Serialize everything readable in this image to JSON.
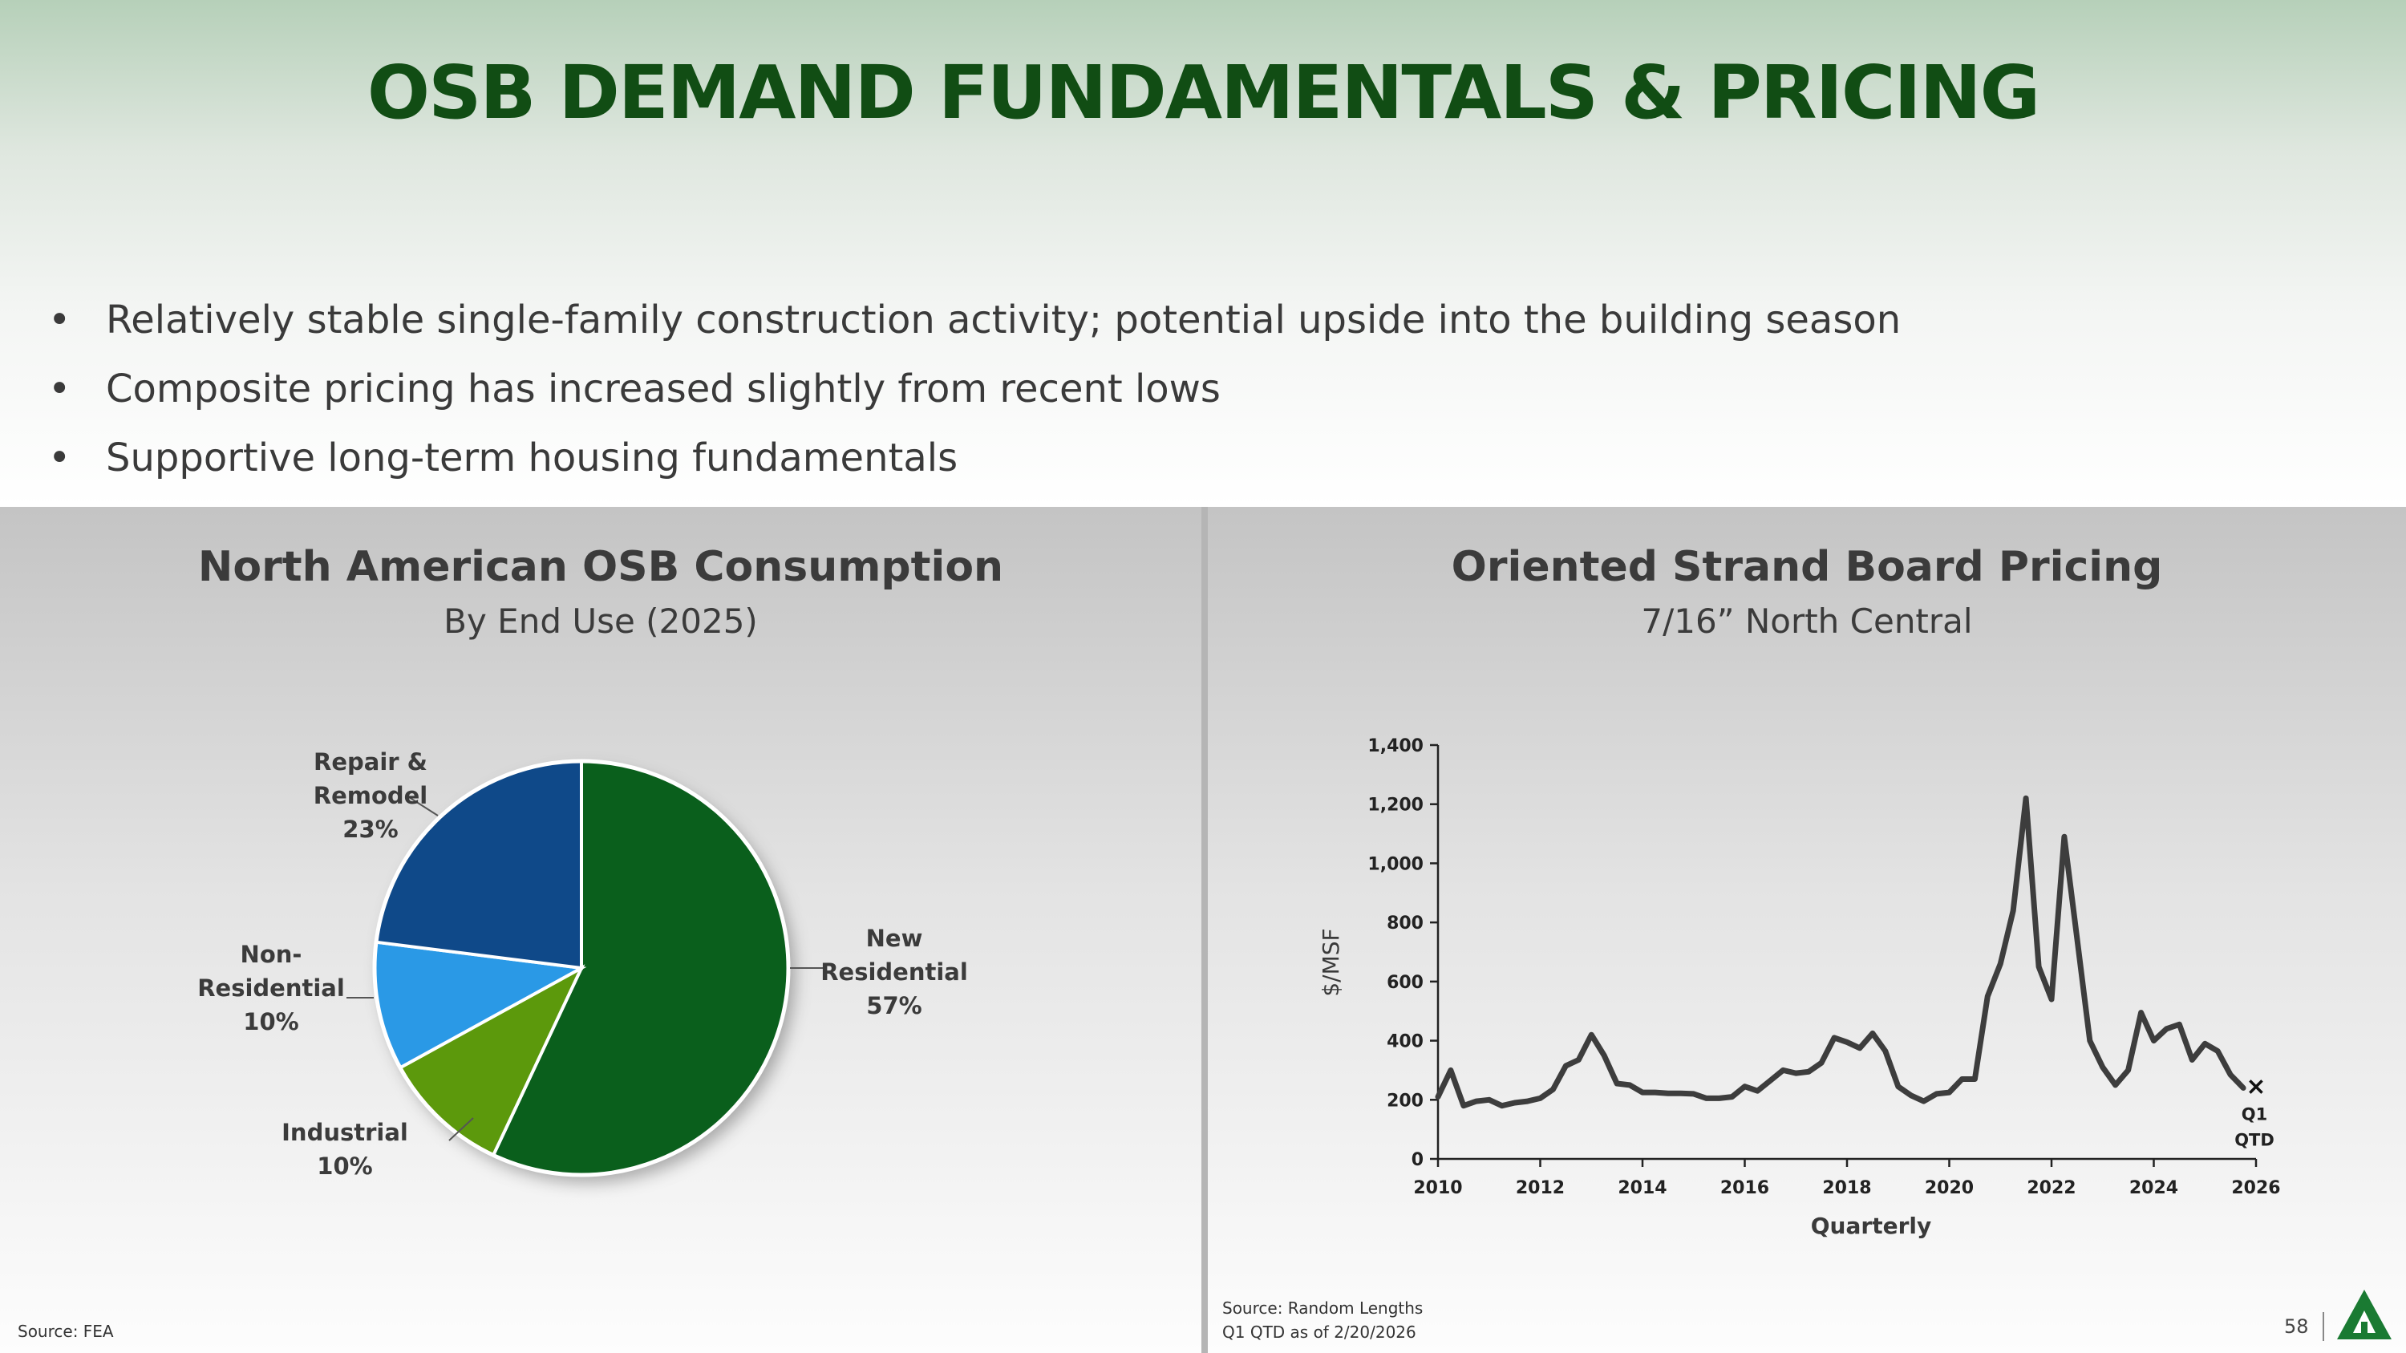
{
  "title": "OSB DEMAND FUNDAMENTALS & PRICING",
  "bullets": [
    "Relatively stable single-family construction activity; potential upside into the building season",
    "Composite pricing has increased slightly from recent lows",
    "Supportive long-term housing fundamentals"
  ],
  "bullet_glyph": "•",
  "left_panel": {
    "title": "North American OSB Consumption",
    "subtitle": "By End Use (2025)",
    "source": "Source: FEA"
  },
  "right_panel": {
    "title": "Oriented Strand Board Pricing",
    "subtitle": "7/16” North Central",
    "source_lines": [
      "Source: Random Lengths",
      "Q1 QTD as of 2/20/2026"
    ]
  },
  "page_number": "58",
  "colors": {
    "title_green": "#114d14",
    "new_residential": "#0a5f1c",
    "industrial": "#5c990c",
    "non_residential": "#2a99e6",
    "repair_remodel": "#0f4989",
    "price_line": "#3d3d3d",
    "logo_green": "#1a7a32"
  },
  "logo_icon": "triangle-logo-icon",
  "chart_data": [
    {
      "type": "pie",
      "title": "North American OSB Consumption",
      "subtitle": "By End Use (2025)",
      "slices": [
        {
          "label_lines": [
            "New",
            "Residential",
            "57%"
          ],
          "name": "New Residential",
          "value": 57,
          "color": "#0a5f1c"
        },
        {
          "label_lines": [
            "Industrial",
            "10%"
          ],
          "name": "Industrial",
          "value": 10,
          "color": "#5c990c"
        },
        {
          "label_lines": [
            "Non-",
            "Residential",
            "10%"
          ],
          "name": "Non-Residential",
          "value": 10,
          "color": "#2a99e6"
        },
        {
          "label_lines": [
            "Repair &",
            "Remodel",
            "23%"
          ],
          "name": "Repair & Remodel",
          "value": 23,
          "color": "#0f4989"
        }
      ]
    },
    {
      "type": "line",
      "title": "Oriented Strand Board Pricing",
      "subtitle": "7/16” North Central",
      "xlabel": "Quarterly",
      "ylabel": "$/MSF",
      "xlim": [
        2010,
        2026
      ],
      "ylim": [
        0,
        1400
      ],
      "xticks": [
        2010,
        2012,
        2014,
        2016,
        2018,
        2020,
        2022,
        2024,
        2026
      ],
      "yticks": [
        0,
        200,
        400,
        600,
        800,
        1000,
        1200,
        1400
      ],
      "ytick_labels": [
        "0",
        "200",
        "400",
        "600",
        "800",
        "1,000",
        "1,200",
        "1,400"
      ],
      "x": [
        2010.0,
        2010.25,
        2010.5,
        2010.75,
        2011.0,
        2011.25,
        2011.5,
        2011.75,
        2012.0,
        2012.25,
        2012.5,
        2012.75,
        2013.0,
        2013.25,
        2013.5,
        2013.75,
        2014.0,
        2014.25,
        2014.5,
        2014.75,
        2015.0,
        2015.25,
        2015.5,
        2015.75,
        2016.0,
        2016.25,
        2016.5,
        2016.75,
        2017.0,
        2017.25,
        2017.5,
        2017.75,
        2018.0,
        2018.25,
        2018.5,
        2018.75,
        2019.0,
        2019.25,
        2019.5,
        2019.75,
        2020.0,
        2020.25,
        2020.5,
        2020.75,
        2021.0,
        2021.25,
        2021.5,
        2021.75,
        2022.0,
        2022.25,
        2022.5,
        2022.75,
        2023.0,
        2023.25,
        2023.5,
        2023.75,
        2024.0,
        2024.25,
        2024.5,
        2024.75,
        2025.0,
        2025.25,
        2025.5,
        2025.75
      ],
      "values": [
        210,
        300,
        180,
        195,
        200,
        180,
        190,
        195,
        205,
        235,
        315,
        335,
        420,
        350,
        255,
        250,
        225,
        225,
        222,
        222,
        220,
        205,
        205,
        210,
        245,
        230,
        265,
        300,
        290,
        295,
        325,
        410,
        395,
        375,
        425,
        365,
        245,
        215,
        195,
        220,
        225,
        270,
        270,
        550,
        660,
        840,
        1220,
        650,
        540,
        1090,
        745,
        400,
        310,
        250,
        300,
        495,
        400,
        440,
        455,
        335,
        390,
        365,
        285,
        240
      ],
      "marker": {
        "x": 2026.0,
        "y": 245,
        "label_lines": [
          "Q1",
          "QTD"
        ]
      }
    }
  ]
}
